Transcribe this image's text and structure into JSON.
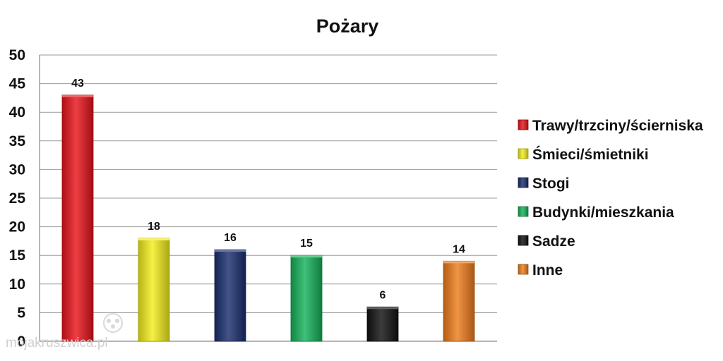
{
  "chart_data": {
    "type": "bar",
    "title": "Pożary",
    "xlabel": "",
    "ylabel": "",
    "ylim": [
      0,
      50
    ],
    "yticks": [
      0,
      5,
      10,
      15,
      20,
      25,
      30,
      35,
      40,
      45,
      50
    ],
    "grid": true,
    "legend_position": "right",
    "categories": [
      "Trawy/trzciny/ścierniska",
      "Śmieci/śmietniki",
      "Stogi",
      "Budynki/mieszkania",
      "Sadze",
      "Inne"
    ],
    "values": [
      43,
      18,
      16,
      15,
      6,
      14
    ],
    "colors": [
      "#e8141b",
      "#f4ee1c",
      "#1b2f6e",
      "#16b25a",
      "#111111",
      "#ee7d1c"
    ]
  },
  "watermark": {
    "text": "mojakruszwica.pl"
  }
}
